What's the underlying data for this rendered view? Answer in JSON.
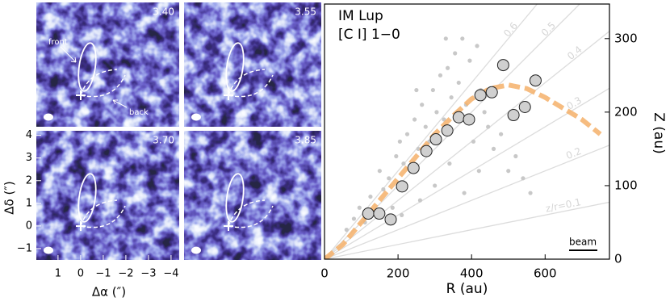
{
  "chart_data": [
    {
      "type": "image",
      "panels": [
        {
          "label": "3.40"
        },
        {
          "label": "3.55"
        },
        {
          "label": "3.70"
        },
        {
          "label": "3.85"
        }
      ],
      "annotations": [
        "front",
        "back"
      ],
      "xlabel": "Δα (″)",
      "ylabel": "Δδ (″)",
      "xlim": [
        1.96,
        -4.36
      ],
      "ylim": [
        -1.5,
        4.2
      ],
      "xticks": [
        1,
        0,
        {
          "value": -1,
          "label": "−1"
        },
        {
          "value": -2,
          "label": "−2"
        },
        {
          "value": -3,
          "label": "−3"
        },
        {
          "value": -4,
          "label": "−4"
        }
      ],
      "yticks": [
        {
          "value": -1,
          "label": "−1"
        },
        0,
        1,
        2,
        3,
        4
      ]
    },
    {
      "type": "scatter",
      "title": "IM Lup",
      "subtitle": "[C I] 1−0",
      "xlabel": "R (au)",
      "ylabel": "Z (au)",
      "xlim": [
        0,
        775
      ],
      "ylim": [
        0,
        347
      ],
      "xticks": [
        0,
        200,
        400,
        600
      ],
      "yticks": [
        0,
        100,
        200,
        300
      ],
      "ratios": [
        {
          "value": 0.1,
          "label": "z/r=0.1"
        },
        {
          "value": 0.2,
          "label": "0.2"
        },
        {
          "value": 0.3,
          "label": "0.3"
        },
        {
          "value": 0.4,
          "label": "0.4"
        },
        {
          "value": 0.5,
          "label": "0.5"
        },
        {
          "value": 0.6,
          "label": "0.6"
        }
      ],
      "beam": "beam",
      "points": {
        "color": "#c8c8c8",
        "x": [
          60,
          80,
          95,
          110,
          125,
          140,
          150,
          160,
          175,
          185,
          195,
          205,
          215,
          225,
          235,
          245,
          255,
          265,
          275,
          285,
          295,
          305,
          315,
          325,
          335,
          345,
          355,
          365,
          375,
          385,
          395,
          405,
          415,
          425,
          435,
          445,
          460,
          480,
          500,
          520,
          540,
          560,
          210,
          260,
          300,
          340,
          380,
          420,
          250,
          330
        ],
        "values": [
          40,
          55,
          70,
          50,
          85,
          60,
          120,
          95,
          110,
          70,
          140,
          160,
          130,
          170,
          120,
          190,
          150,
          210,
          180,
          160,
          230,
          200,
          250,
          190,
          260,
          220,
          280,
          240,
          300,
          210,
          270,
          160,
          290,
          230,
          200,
          180,
          150,
          170,
          120,
          140,
          110,
          90,
          60,
          80,
          100,
          130,
          90,
          120,
          230,
          300
        ]
      },
      "measurements": {
        "color": "#d0d0d0",
        "x": [
          119,
          149,
          180,
          211,
          242,
          277,
          303,
          334,
          365,
          393,
          424,
          455,
          486,
          514,
          545,
          574
        ],
        "values": [
          62,
          62,
          54,
          99,
          124,
          147,
          163,
          175,
          193,
          190,
          223,
          227,
          264,
          196,
          207,
          243
        ]
      },
      "fit": {
        "color": "#f5b06a",
        "x": [
          0,
          50,
          100,
          150,
          200,
          250,
          300,
          350,
          400,
          450,
          500,
          550,
          600,
          650,
          700,
          750
        ],
        "values": [
          0,
          20,
          50,
          80,
          110,
          140,
          170,
          195,
          218,
          232,
          237,
          232,
          220,
          205,
          190,
          170
        ]
      }
    }
  ]
}
